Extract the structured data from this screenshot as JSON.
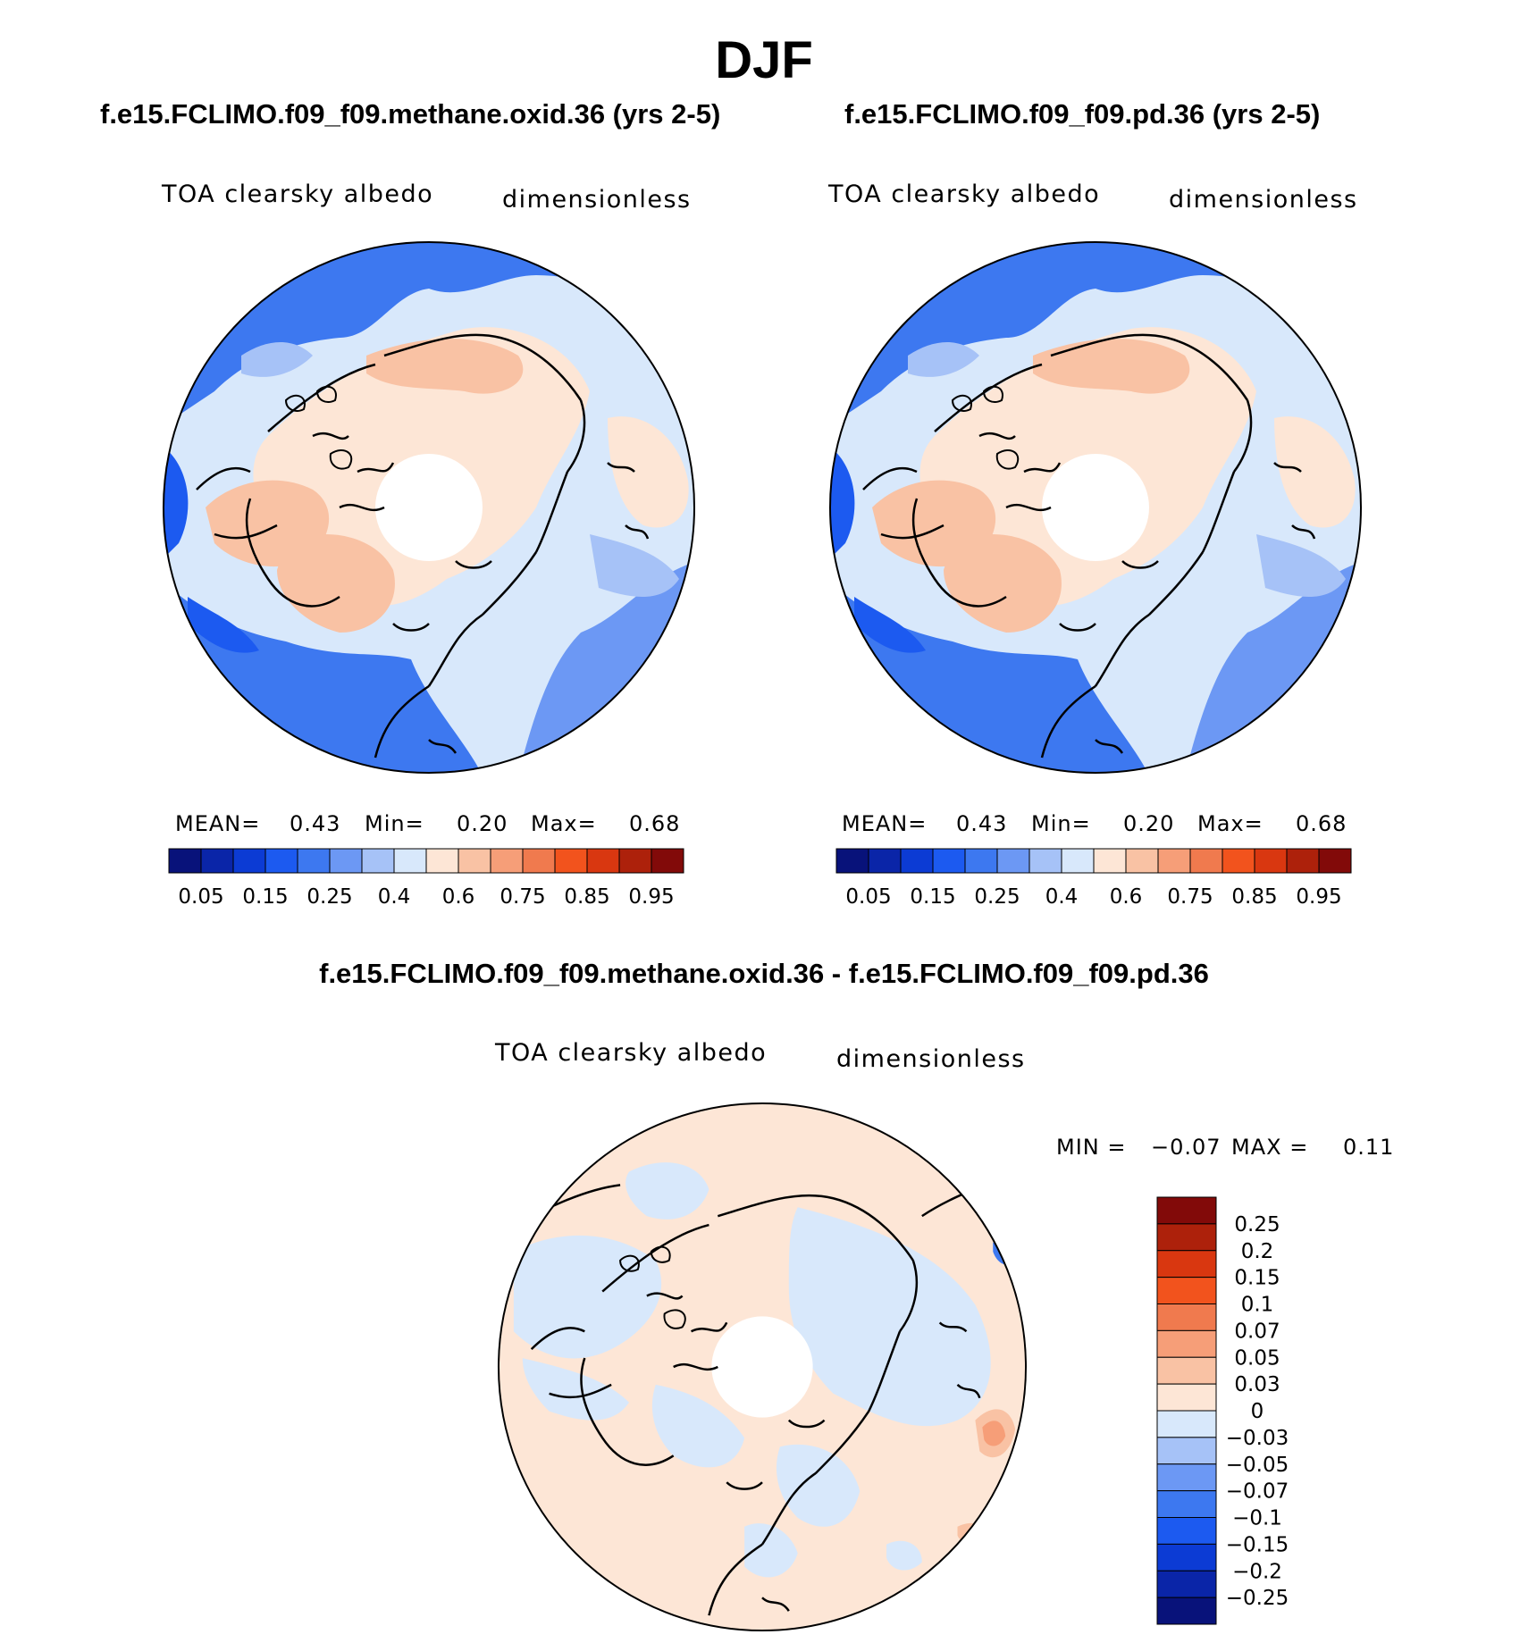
{
  "title": "DJF",
  "panels": [
    {
      "case": "f.e15.FCLIMO.f09_f09.methane.oxid.36 (yrs 2-5)",
      "variable": "TOA clearsky albedo",
      "units": "dimensionless",
      "stats": {
        "mean_label": "MEAN=",
        "mean": "0.43",
        "min_label": "Min=",
        "min": "0.20",
        "max_label": "Max=",
        "max": "0.68"
      }
    },
    {
      "case": "f.e15.FCLIMO.f09_f09.pd.36 (yrs 2-5)",
      "variable": "TOA clearsky albedo",
      "units": "dimensionless",
      "stats": {
        "mean_label": "MEAN=",
        "mean": "0.43",
        "min_label": "Min=",
        "min": "0.20",
        "max_label": "Max=",
        "max": "0.68"
      }
    }
  ],
  "diff": {
    "title": "f.e15.FCLIMO.f09_f09.methane.oxid.36 - f.e15.FCLIMO.f09_f09.pd.36",
    "variable": "TOA clearsky albedo",
    "units": "dimensionless",
    "min_label": "MIN =",
    "min": "−0.07",
    "max_label": "MAX =",
    "max": "0.11"
  },
  "chart_data": [
    {
      "type": "heatmap",
      "projection": "north polar stereographic",
      "title": "f.e15.FCLIMO.f09_f09.methane.oxid.36 (yrs 2-5)",
      "variable": "TOA clearsky albedo",
      "units": "dimensionless",
      "mean": 0.43,
      "min": 0.2,
      "max": 0.68,
      "colorbar_labels": [
        "0.05",
        "0.15",
        "0.25",
        "0.4",
        "0.6",
        "0.75",
        "0.85",
        "0.95"
      ],
      "colors": [
        "#08127a",
        "#0a25a8",
        "#0c3bd4",
        "#1c5af0",
        "#3d78f0",
        "#6c98f4",
        "#a6c2f7",
        "#d8e8fb",
        "#fde6d6",
        "#f9c2a4",
        "#f69e78",
        "#f07a4e",
        "#f2531d",
        "#d93710",
        "#ad210b",
        "#820a09"
      ]
    },
    {
      "type": "heatmap",
      "projection": "north polar stereographic",
      "title": "f.e15.FCLIMO.f09_f09.pd.36 (yrs 2-5)",
      "variable": "TOA clearsky albedo",
      "units": "dimensionless",
      "mean": 0.43,
      "min": 0.2,
      "max": 0.68,
      "colorbar_labels": [
        "0.05",
        "0.15",
        "0.25",
        "0.4",
        "0.6",
        "0.75",
        "0.85",
        "0.95"
      ],
      "colors": [
        "#08127a",
        "#0a25a8",
        "#0c3bd4",
        "#1c5af0",
        "#3d78f0",
        "#6c98f4",
        "#a6c2f7",
        "#d8e8fb",
        "#fde6d6",
        "#f9c2a4",
        "#f69e78",
        "#f07a4e",
        "#f2531d",
        "#d93710",
        "#ad210b",
        "#820a09"
      ]
    },
    {
      "type": "heatmap",
      "projection": "north polar stereographic",
      "title": "f.e15.FCLIMO.f09_f09.methane.oxid.36 - f.e15.FCLIMO.f09_f09.pd.36",
      "variable": "TOA clearsky albedo",
      "units": "dimensionless",
      "min": -0.07,
      "max": 0.11,
      "colorbar_labels": [
        "0.25",
        "0.2",
        "0.15",
        "0.1",
        "0.07",
        "0.05",
        "0.03",
        "0",
        "−0.03",
        "−0.05",
        "−0.07",
        "−0.1",
        "−0.15",
        "−0.2",
        "−0.25"
      ],
      "colors": [
        "#820a09",
        "#ad210b",
        "#d93710",
        "#f2531d",
        "#f07a4e",
        "#f69e78",
        "#f9c2a4",
        "#fde6d6",
        "#d8e8fb",
        "#a6c2f7",
        "#6c98f4",
        "#3d78f0",
        "#1c5af0",
        "#0c3bd4",
        "#0a25a8",
        "#08127a"
      ]
    }
  ]
}
